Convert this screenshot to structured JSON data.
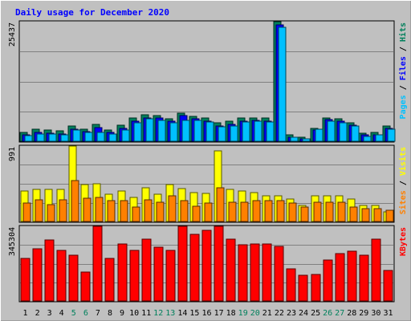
{
  "chart_data": {
    "type": "bar",
    "title": "Daily usage for December 2020",
    "categories": [
      "1",
      "2",
      "3",
      "4",
      "5",
      "6",
      "7",
      "8",
      "9",
      "10",
      "11",
      "12",
      "13",
      "14",
      "15",
      "16",
      "17",
      "18",
      "19",
      "20",
      "21",
      "22",
      "23",
      "24",
      "25",
      "26",
      "27",
      "28",
      "29",
      "30",
      "31"
    ],
    "weekend_days": [
      "5",
      "6",
      "12",
      "13",
      "19",
      "20",
      "26",
      "27"
    ],
    "panels": [
      {
        "id": "pages-files-hits",
        "max_label": "25437",
        "ylim": [
          0,
          25437
        ],
        "grid": true,
        "legend": [
          "Pages",
          "Files",
          "Hits"
        ],
        "series": [
          {
            "name": "Hits",
            "color": "#00805c",
            "values": [
              1900,
              2600,
              2400,
              2200,
              3200,
              2500,
              3500,
              2400,
              3400,
              4900,
              5600,
              5500,
              4800,
              6000,
              5300,
              4900,
              3900,
              4300,
              4900,
              5000,
              4900,
              25400,
              1300,
              900,
              2800,
              5000,
              4800,
              3900,
              1700,
              1800,
              3300
            ]
          },
          {
            "name": "Files",
            "color": "#0000ff",
            "values": [
              1400,
              1900,
              1700,
              1600,
              2600,
              2000,
              2900,
              1800,
              2700,
              4200,
              5000,
              4900,
              4200,
              5400,
              4800,
              4300,
              3300,
              3600,
              4300,
              4400,
              4300,
              24800,
              900,
              500,
              2400,
              4600,
              4300,
              3400,
              1300,
              1300,
              2800
            ]
          },
          {
            "name": "Pages",
            "color": "#00c0ff",
            "values": [
              1200,
              1600,
              1500,
              1400,
              2400,
              1800,
              1900,
              1600,
              2400,
              4000,
              4700,
              4500,
              4000,
              4500,
              4500,
              4100,
              3100,
              3200,
              4100,
              4200,
              4100,
              24300,
              800,
              500,
              2500,
              4300,
              4000,
              3300,
              1100,
              1400,
              2600
            ]
          }
        ]
      },
      {
        "id": "visits-sites",
        "max_label": "991",
        "ylim": [
          0,
          991
        ],
        "grid": true,
        "legend": [
          "Sites",
          "Visits"
        ],
        "series": [
          {
            "name": "Visits",
            "color": "#ffff00",
            "values": [
              400,
              420,
              420,
              420,
              990,
              480,
              500,
              360,
              400,
              320,
              440,
              360,
              490,
              430,
              380,
              370,
              930,
              420,
              400,
              380,
              340,
              340,
              300,
              210,
              340,
              340,
              340,
              300,
              210,
              210,
              130
            ]
          },
          {
            "name": "Sites",
            "color": "#ff8000",
            "values": [
              240,
              280,
              220,
              280,
              540,
              310,
              320,
              270,
              270,
              190,
              280,
              250,
              340,
              270,
              200,
              240,
              440,
              250,
              250,
              270,
              270,
              270,
              240,
              190,
              250,
              250,
              250,
              190,
              170,
              170,
              150
            ]
          }
        ]
      },
      {
        "id": "kbytes",
        "max_label": "345304",
        "ylim": [
          0,
          345304
        ],
        "grid": true,
        "legend": [
          "KBytes"
        ],
        "series": [
          {
            "name": "KBytes",
            "color": "#ff0000",
            "values": [
              195000,
              240000,
              283000,
              233000,
              210000,
              132000,
              345000,
              195000,
              264000,
              235000,
              287000,
              247000,
              233000,
              345000,
              307000,
              325000,
              345000,
              285000,
              259000,
              265000,
              262000,
              252000,
              150000,
              120000,
              121000,
              191000,
              220000,
              230000,
              212000,
              287000,
              140000
            ]
          }
        ]
      }
    ]
  }
}
